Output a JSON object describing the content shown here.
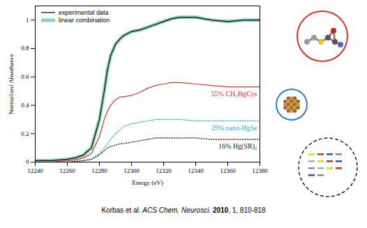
{
  "chart_data": {
    "type": "line",
    "x_label": "Energy (eV)",
    "y_label": "Normalized Absorbance",
    "x": [
      12240,
      12250,
      12260,
      12265,
      12270,
      12275,
      12280,
      12283,
      12285,
      12287,
      12290,
      12293,
      12295,
      12300,
      12305,
      12310,
      12315,
      12320,
      12325,
      12330,
      12340,
      12350,
      12360,
      12370,
      12380
    ],
    "xlim": [
      12240,
      12380
    ],
    "xticks": [
      12240,
      12260,
      12280,
      12300,
      12320,
      12340,
      12360,
      12380
    ],
    "ylim": [
      0,
      1.1
    ],
    "yticks": [
      0,
      0.2,
      0.4,
      0.6,
      0.8,
      1
    ],
    "legend": "top-left",
    "series": [
      {
        "name": "linear combination",
        "color": "#5fc596",
        "line_style": "band",
        "values": [
          0.01,
          0.01,
          0.02,
          0.03,
          0.05,
          0.1,
          0.3,
          0.5,
          0.65,
          0.75,
          0.83,
          0.87,
          0.89,
          0.92,
          0.93,
          0.95,
          0.97,
          0.99,
          1.01,
          1.02,
          1.02,
          1.0,
          0.99,
          1.0,
          1.0
        ]
      },
      {
        "name": "experimental data",
        "color": "#000000",
        "line_style": "solid",
        "values": [
          0.01,
          0.01,
          0.02,
          0.03,
          0.05,
          0.1,
          0.3,
          0.5,
          0.65,
          0.75,
          0.83,
          0.87,
          0.89,
          0.92,
          0.93,
          0.95,
          0.97,
          0.99,
          1.01,
          1.02,
          1.02,
          1.0,
          0.99,
          1.0,
          1.0
        ]
      }
    ],
    "components": [
      {
        "name": "55% CH₃HgCys",
        "color": "#e0302a",
        "line_style": "solid",
        "values": [
          0,
          0,
          0.01,
          0.015,
          0.03,
          0.06,
          0.18,
          0.3,
          0.36,
          0.4,
          0.44,
          0.46,
          0.46,
          0.47,
          0.49,
          0.52,
          0.54,
          0.55,
          0.56,
          0.56,
          0.55,
          0.54,
          0.53,
          0.53,
          0.53
        ]
      },
      {
        "name": "29% nano-HgSe",
        "color": "#2fa8dc",
        "line_style": "dotted",
        "values": [
          0,
          0,
          0,
          0.005,
          0.01,
          0.02,
          0.06,
          0.1,
          0.13,
          0.16,
          0.2,
          0.23,
          0.25,
          0.27,
          0.28,
          0.29,
          0.3,
          0.3,
          0.3,
          0.3,
          0.29,
          0.29,
          0.29,
          0.29,
          0.29
        ]
      },
      {
        "name": "16% Hg(SR)₂",
        "color": "#222222",
        "line_style": "dotted",
        "values": [
          0,
          0,
          0,
          0.005,
          0.01,
          0.02,
          0.05,
          0.08,
          0.1,
          0.11,
          0.12,
          0.13,
          0.13,
          0.14,
          0.15,
          0.16,
          0.17,
          0.17,
          0.17,
          0.17,
          0.17,
          0.16,
          0.16,
          0.16,
          0.16
        ]
      }
    ],
    "citation": {
      "authors": "Korbas et al.",
      "journal": "ACS Chem. Neurosci.",
      "year": "2010",
      "rest": ", 1, 810-818"
    }
  }
}
